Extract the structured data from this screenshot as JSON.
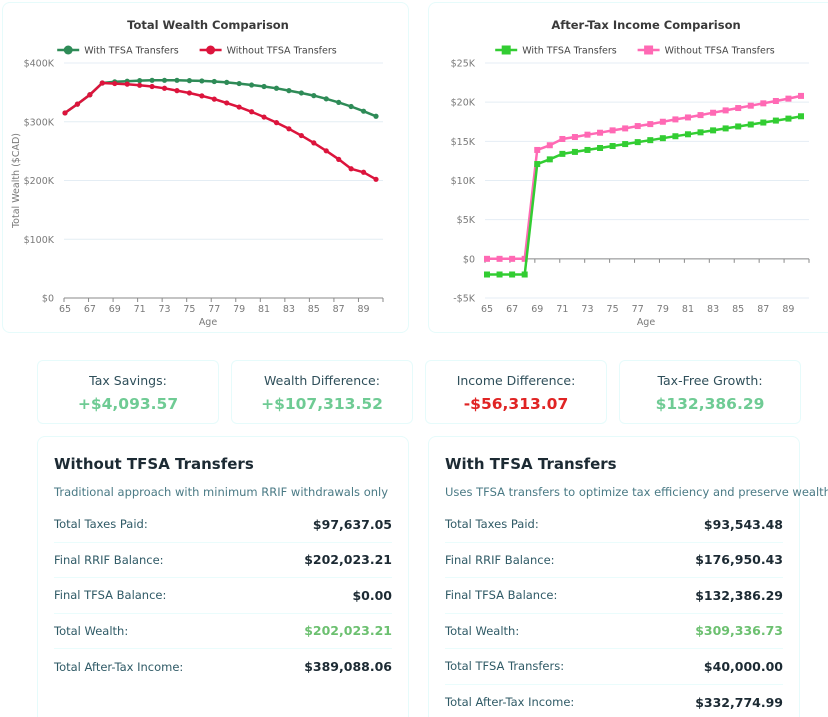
{
  "chart_data": [
    {
      "type": "line",
      "title": "Total Wealth Comparison",
      "xlabel": "Age",
      "ylabel": "Total Wealth ($CAD)",
      "x": [
        65,
        66,
        67,
        68,
        69,
        70,
        71,
        72,
        73,
        74,
        75,
        76,
        77,
        78,
        79,
        80,
        81,
        82,
        83,
        84,
        85,
        86,
        87,
        88,
        89,
        90
      ],
      "x_tick_labels": [
        "65",
        "67",
        "69",
        "71",
        "73",
        "75",
        "77",
        "79",
        "81",
        "83",
        "85",
        "87",
        "89"
      ],
      "ylim": [
        0,
        400000
      ],
      "y_ticks": [
        0,
        100000,
        200000,
        300000,
        400000
      ],
      "y_tick_labels": [
        "$0",
        "$100K",
        "$200K",
        "$300K",
        "$400K"
      ],
      "grid": true,
      "legend_position": "top-center",
      "series": [
        {
          "name": "With TFSA Transfers",
          "color": "#2e8b57",
          "marker": "circle",
          "values": [
            315000,
            330000,
            346000,
            366000,
            368000,
            369000,
            370000,
            370500,
            370500,
            370500,
            370000,
            369500,
            368500,
            367000,
            365000,
            362500,
            360000,
            357000,
            353000,
            349000,
            344500,
            339000,
            333000,
            326000,
            318000,
            309337
          ]
        },
        {
          "name": "Without TFSA Transfers",
          "color": "#dc143c",
          "marker": "circle",
          "values": [
            315000,
            330000,
            346000,
            366000,
            365000,
            364000,
            362000,
            360000,
            357000,
            353000,
            349000,
            344000,
            338500,
            332000,
            325000,
            317000,
            308000,
            298500,
            288000,
            276500,
            264000,
            250500,
            236000,
            220000,
            214000,
            202023
          ]
        }
      ]
    },
    {
      "type": "line",
      "title": "After-Tax Income Comparison",
      "xlabel": "Age",
      "ylabel": "",
      "x": [
        65,
        66,
        67,
        68,
        69,
        70,
        71,
        72,
        73,
        74,
        75,
        76,
        77,
        78,
        79,
        80,
        81,
        82,
        83,
        84,
        85,
        86,
        87,
        88,
        89,
        90
      ],
      "x_tick_labels": [
        "65",
        "67",
        "69",
        "71",
        "73",
        "75",
        "77",
        "79",
        "81",
        "83",
        "85",
        "87",
        "89"
      ],
      "ylim": [
        -5000,
        25000
      ],
      "y_ticks": [
        -5000,
        0,
        5000,
        10000,
        15000,
        20000,
        25000
      ],
      "y_tick_labels": [
        "-$5K",
        "$0",
        "$5K",
        "$10K",
        "$15K",
        "$20K",
        "$25K"
      ],
      "grid": true,
      "legend_position": "top-center",
      "series": [
        {
          "name": "With TFSA Transfers",
          "color": "#32cd32",
          "marker": "square",
          "values": [
            -2000,
            -2000,
            -2000,
            -2000,
            12100,
            12700,
            13400,
            13650,
            13900,
            14150,
            14400,
            14650,
            14900,
            15150,
            15400,
            15650,
            15900,
            16150,
            16400,
            16650,
            16900,
            17150,
            17400,
            17650,
            17900,
            18200
          ]
        },
        {
          "name": "Without TFSA Transfers",
          "color": "#ff69b4",
          "marker": "square",
          "values": [
            0,
            0,
            0,
            0,
            13900,
            14500,
            15300,
            15550,
            15850,
            16100,
            16400,
            16650,
            16950,
            17200,
            17500,
            17800,
            18050,
            18350,
            18650,
            18950,
            19250,
            19550,
            19850,
            20150,
            20450,
            20800
          ]
        }
      ]
    }
  ],
  "stats": [
    {
      "label": "Tax Savings:",
      "value": "+$4,093.57",
      "tone": "positive"
    },
    {
      "label": "Wealth Difference:",
      "value": "+$107,313.52",
      "tone": "positive"
    },
    {
      "label": "Income Difference:",
      "value": "-$56,313.07",
      "tone": "negative"
    },
    {
      "label": "Tax-Free Growth:",
      "value": "$132,386.29",
      "tone": "positive"
    }
  ],
  "without": {
    "title": "Without TFSA Transfers",
    "description": "Traditional approach with minimum RRIF withdrawals only",
    "rows": [
      {
        "label": "Total Taxes Paid:",
        "value": "$97,637.05"
      },
      {
        "label": "Final RRIF Balance:",
        "value": "$202,023.21"
      },
      {
        "label": "Final TFSA Balance:",
        "value": "$0.00"
      },
      {
        "label": "Total Wealth:",
        "value": "$202,023.21"
      },
      {
        "label": "Total After-Tax Income:",
        "value": "$389,088.06"
      }
    ]
  },
  "with": {
    "title": "With TFSA Transfers",
    "description": "Uses TFSA transfers to optimize tax efficiency and preserve wealth",
    "rows": [
      {
        "label": "Total Taxes Paid:",
        "value": "$93,543.48"
      },
      {
        "label": "Final RRIF Balance:",
        "value": "$176,950.43"
      },
      {
        "label": "Final TFSA Balance:",
        "value": "$132,386.29"
      },
      {
        "label": "Total Wealth:",
        "value": "$309,336.73"
      },
      {
        "label": "Total TFSA Transfers:",
        "value": "$40,000.00"
      },
      {
        "label": "Total After-Tax Income:",
        "value": "$332,774.99"
      }
    ]
  }
}
